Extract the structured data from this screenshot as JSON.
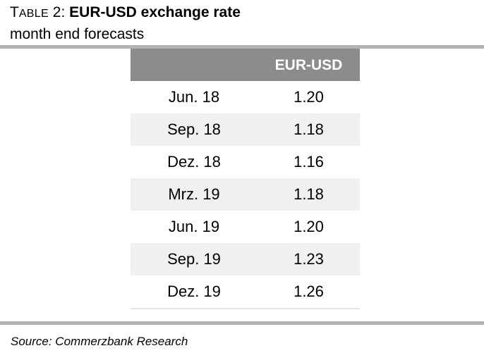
{
  "title": {
    "prefix_cap": "T",
    "prefix_rest": "able",
    "number": " 2: ",
    "bold": "EUR-USD exchange rate"
  },
  "subtitle": "month end forecasts",
  "table": {
    "column_header": "EUR-USD",
    "rows": [
      {
        "date": "Jun. 18",
        "value": "1.20"
      },
      {
        "date": "Sep. 18",
        "value": "1.18"
      },
      {
        "date": "Dez. 18",
        "value": "1.16"
      },
      {
        "date": "Mrz. 19",
        "value": "1.18"
      },
      {
        "date": "Jun. 19",
        "value": "1.20"
      },
      {
        "date": "Sep. 19",
        "value": "1.23"
      },
      {
        "date": "Dez. 19",
        "value": "1.26"
      }
    ]
  },
  "source": "Source: Commerzbank Research",
  "colors": {
    "header_bg": "#8c8c8c",
    "rule": "#b3b3b3",
    "shaded_row": "#f0f0f0"
  }
}
